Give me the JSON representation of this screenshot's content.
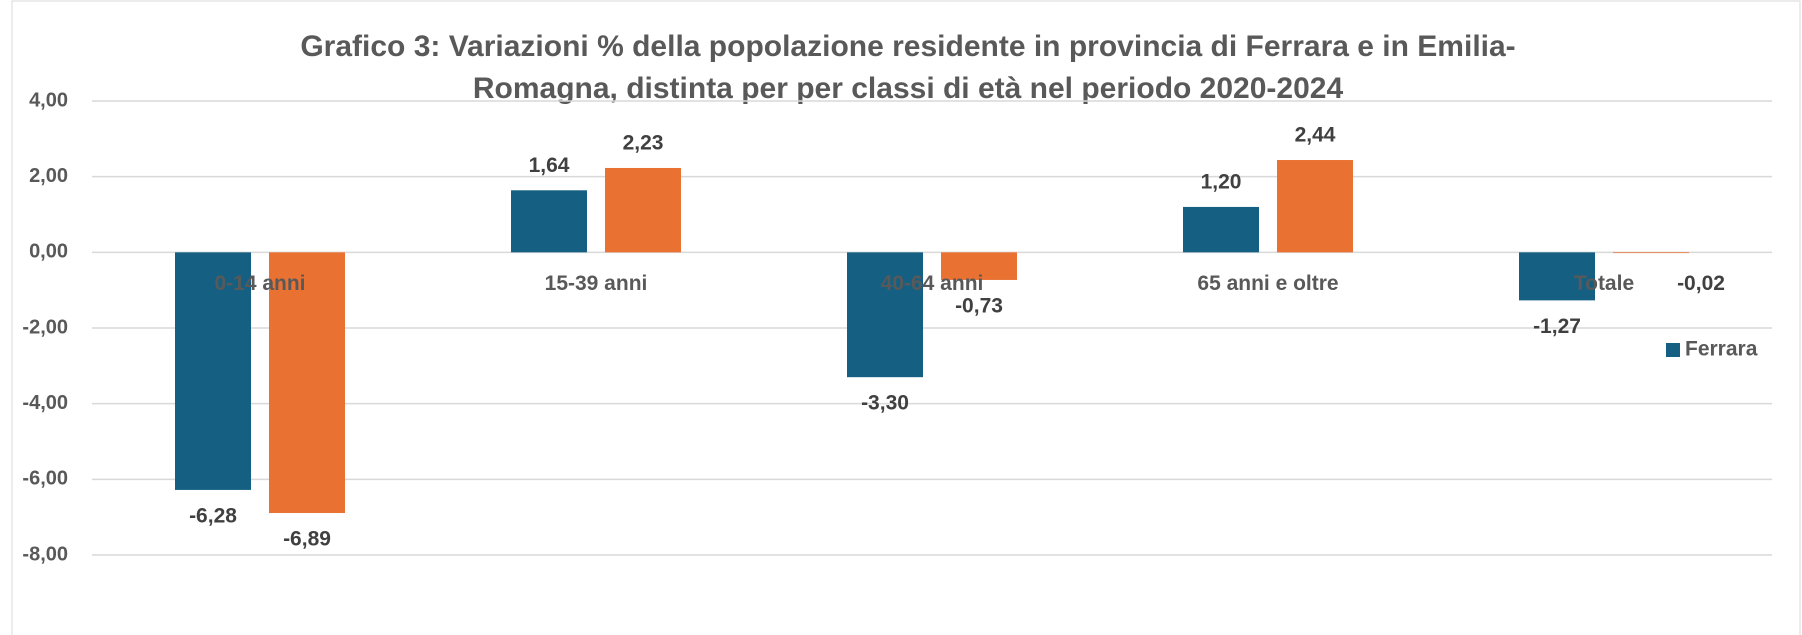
{
  "chart_data": {
    "type": "bar",
    "title_lines": [
      "Grafico 3: Variazioni % della popolazione residente in provincia di Ferrara e in Emilia-",
      "Romagna, distinta per per classi di età nel periodo 2020-2024"
    ],
    "categories": [
      "0-14 anni",
      "15-39 anni",
      "40-64 anni",
      "65 anni e oltre",
      "Totale"
    ],
    "series": [
      {
        "name": "Ferrara",
        "color": "#156082",
        "values": [
          -6.28,
          1.64,
          -3.3,
          1.2,
          -1.27
        ],
        "value_labels": [
          "-6,28",
          "1,64",
          "-3,30",
          "1,20",
          "-1,27"
        ]
      },
      {
        "color": "#e97132",
        "values": [
          -6.89,
          2.23,
          -0.73,
          2.44,
          -0.02
        ],
        "value_labels": [
          "-6,89",
          "2,23",
          "-0,73",
          "2,44",
          "-0,02"
        ]
      }
    ],
    "ylim": [
      -8,
      4
    ],
    "yticks": [
      {
        "value": -8,
        "label": "-8,00"
      },
      {
        "value": -6,
        "label": "-6,00"
      },
      {
        "value": -4,
        "label": "-4,00"
      },
      {
        "value": -2,
        "label": "-2,00"
      },
      {
        "value": 0,
        "label": "0,00"
      },
      {
        "value": 2,
        "label": "2,00"
      },
      {
        "value": 4,
        "label": "4,00"
      }
    ],
    "grid": true,
    "legend": "right"
  }
}
